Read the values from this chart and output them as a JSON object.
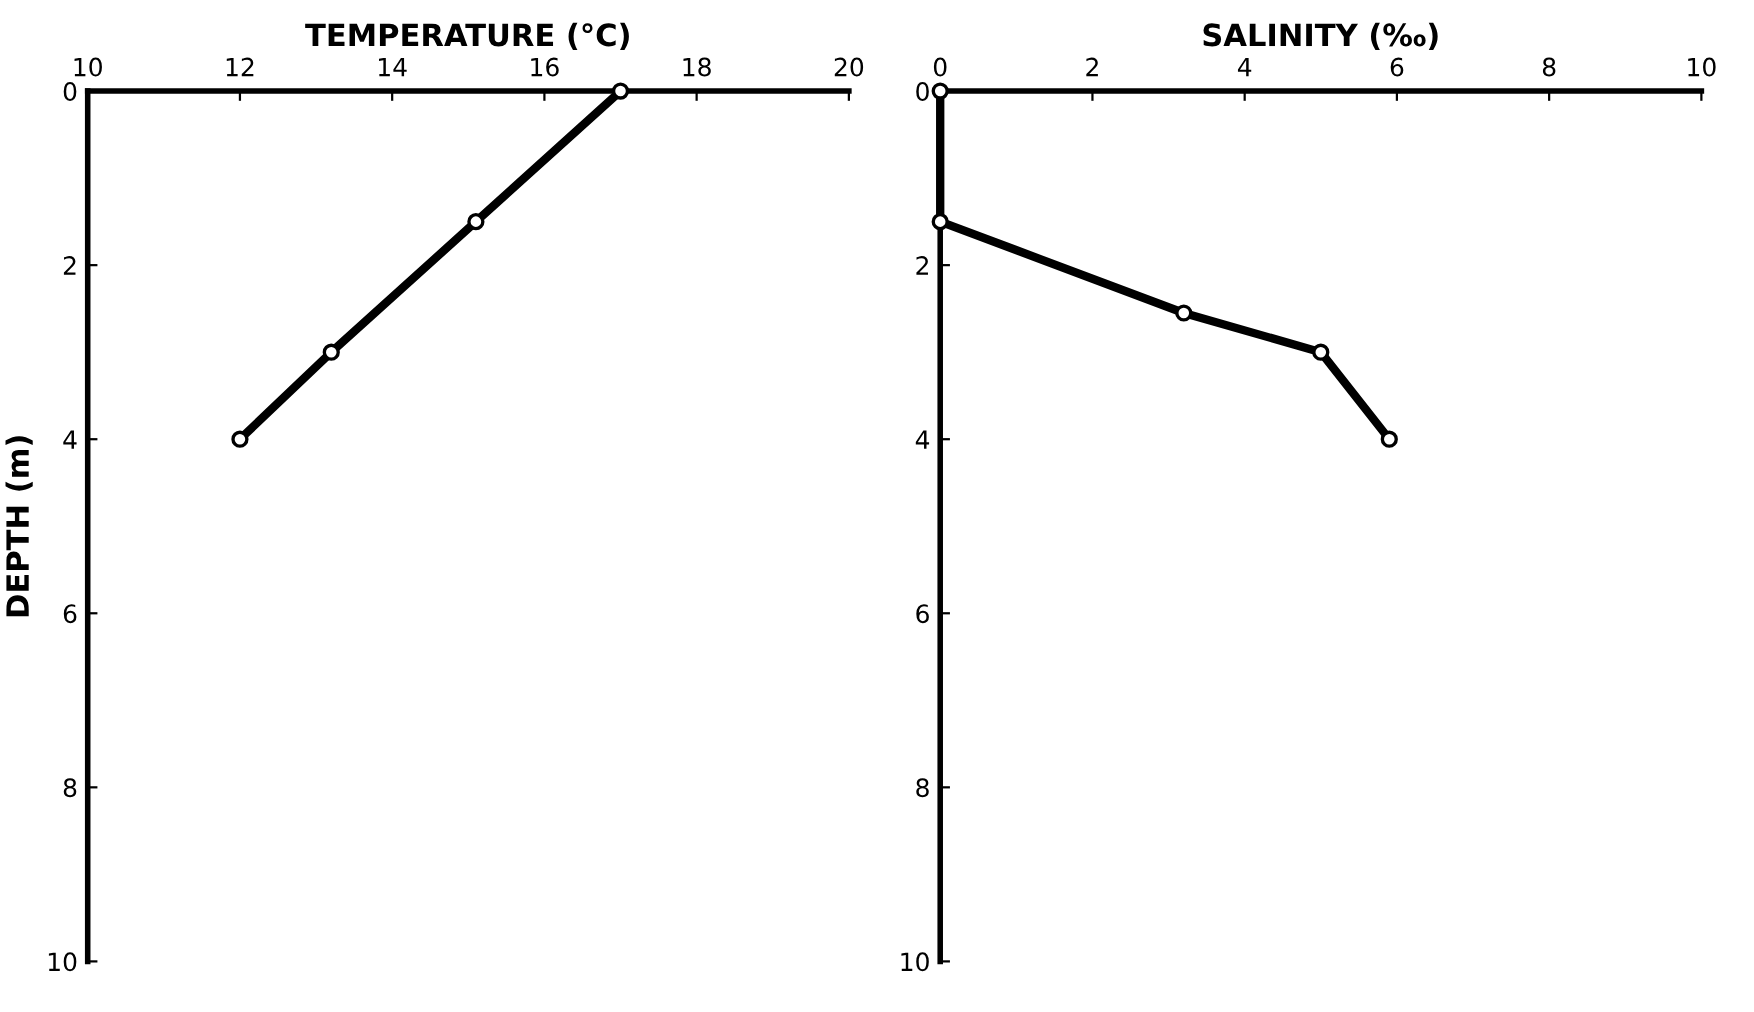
{
  "chart_data": [
    {
      "type": "line",
      "xlabel": "TEMPERATURE (°C)",
      "ylabel": "DEPTH (m)",
      "x": [
        17,
        15.1,
        13.2,
        12
      ],
      "values": [
        0,
        1.5,
        3,
        4
      ],
      "color": "#000000",
      "marker": "circle",
      "xlim": [
        10,
        20
      ],
      "xticks": [
        10,
        12,
        14,
        16,
        18,
        20
      ],
      "ylim": [
        10,
        0
      ],
      "yticks": [
        0,
        2,
        4,
        6,
        8,
        10
      ],
      "grid": false
    },
    {
      "type": "line",
      "xlabel": "SALINITY (‰)",
      "x": [
        0,
        0,
        3.2,
        5,
        5.9
      ],
      "values": [
        0,
        1.5,
        2.55,
        3,
        4
      ],
      "color": "#000000",
      "marker": "circle",
      "xlim": [
        0,
        10
      ],
      "xticks": [
        0,
        2,
        4,
        6,
        8,
        10
      ],
      "ylim": [
        10,
        0
      ],
      "yticks": [
        0,
        2,
        4,
        6,
        8,
        10
      ],
      "grid": false
    }
  ]
}
